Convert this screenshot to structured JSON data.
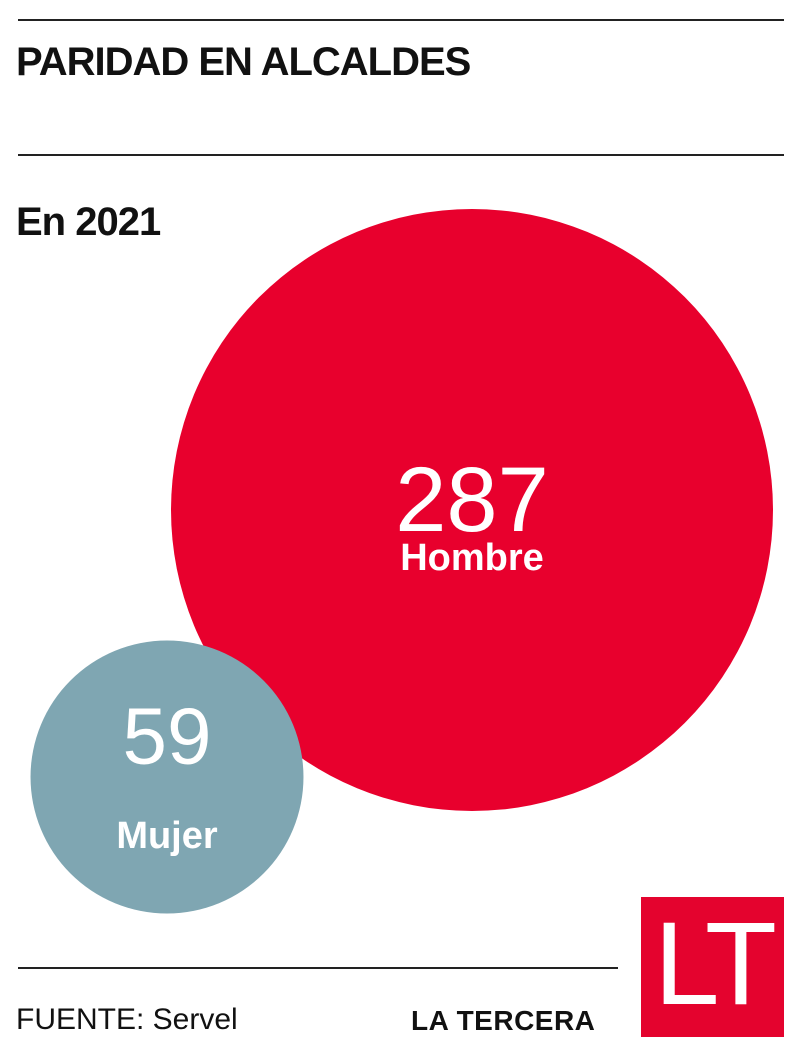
{
  "title": "PARIDAD EN ALCALDES",
  "subtitle": "En 2021",
  "source": "FUENTE: Servel",
  "brand": {
    "name": "LA TERCERA",
    "logo_text": "LT"
  },
  "colors": {
    "hombre": "#E8002D",
    "mujer": "#7FA6B2",
    "logo": "#E4032E",
    "text": "#111111"
  },
  "chart_data": {
    "type": "bubble",
    "title": "PARIDAD EN ALCALDES",
    "subtitle": "En 2021",
    "categories": [
      "Hombre",
      "Mujer"
    ],
    "values": [
      287,
      59
    ],
    "series": [
      {
        "name": "Hombre",
        "value": 287,
        "color": "#E8002D"
      },
      {
        "name": "Mujer",
        "value": 59,
        "color": "#7FA6B2"
      }
    ]
  }
}
